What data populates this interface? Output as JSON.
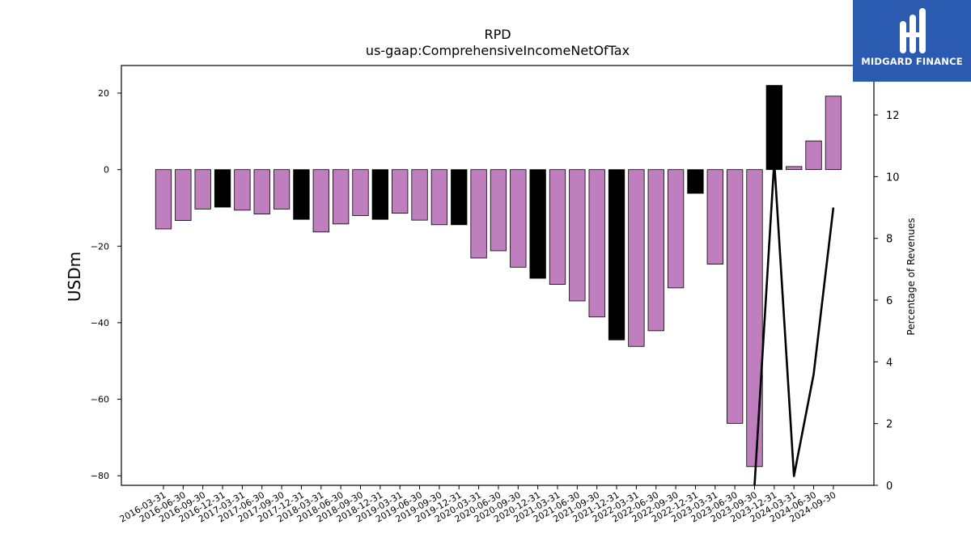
{
  "chart_data": {
    "type": "bar",
    "title": "RPD",
    "subtitle": "us-gaap:ComprehensiveIncomeNetOfTax",
    "ylabel": "USDm",
    "y2label": "Percentage of Revenues",
    "ylim": [
      -82.5,
      27.2
    ],
    "y2lim": [
      0,
      13.6
    ],
    "yticks": [
      20,
      0,
      -20,
      -40,
      -60,
      -80
    ],
    "y2ticks": [
      0,
      2,
      4,
      6,
      8,
      10,
      12
    ],
    "grid": false,
    "categories": [
      "2016-03-31",
      "2016-06-30",
      "2016-09-30",
      "2016-12-31",
      "2017-03-31",
      "2017-06-30",
      "2017-09-30",
      "2017-12-31",
      "2018-03-31",
      "2018-06-30",
      "2018-09-30",
      "2018-12-31",
      "2019-03-31",
      "2019-06-30",
      "2019-09-30",
      "2019-12-31",
      "2020-03-31",
      "2020-06-30",
      "2020-09-30",
      "2020-12-31",
      "2021-03-31",
      "2021-06-30",
      "2021-09-30",
      "2021-12-31",
      "2022-03-31",
      "2022-06-30",
      "2022-09-30",
      "2022-12-31",
      "2023-03-31",
      "2023-06-30",
      "2023-09-30",
      "2023-12-31",
      "2024-03-31",
      "2024-06-30",
      "2024-09-30"
    ],
    "values": [
      -15.5,
      -13.3,
      -10.3,
      -9.8,
      -10.6,
      -11.6,
      -10.3,
      -13.0,
      -16.3,
      -14.2,
      -12.0,
      -13.0,
      -11.4,
      -13.2,
      -14.4,
      -14.4,
      -23.1,
      -21.2,
      -25.5,
      -28.4,
      -30.0,
      -34.3,
      -38.5,
      -44.5,
      -46.2,
      -42.1,
      -30.9,
      -6.2,
      -24.7,
      -66.3,
      -77.6,
      22.0,
      0.8,
      7.5,
      19.2
    ],
    "bar_colors": [
      "#bf7fbf",
      "#bf7fbf",
      "#bf7fbf",
      "#000000",
      "#bf7fbf",
      "#bf7fbf",
      "#bf7fbf",
      "#000000",
      "#bf7fbf",
      "#bf7fbf",
      "#bf7fbf",
      "#000000",
      "#bf7fbf",
      "#bf7fbf",
      "#bf7fbf",
      "#000000",
      "#bf7fbf",
      "#bf7fbf",
      "#bf7fbf",
      "#000000",
      "#bf7fbf",
      "#bf7fbf",
      "#bf7fbf",
      "#000000",
      "#bf7fbf",
      "#bf7fbf",
      "#bf7fbf",
      "#000000",
      "#bf7fbf",
      "#bf7fbf",
      "#bf7fbf",
      "#000000",
      "#bf7fbf",
      "#bf7fbf",
      "#bf7fbf"
    ],
    "line_series": {
      "x": [
        "2023-09-30",
        "2023-12-31",
        "2024-03-31",
        "2024-06-30",
        "2024-09-30"
      ],
      "values": [
        -1.0,
        10.5,
        0.3,
        3.6,
        9.0
      ],
      "color": "#000000"
    }
  },
  "logo": {
    "text": "MIDGARD FINANCE"
  },
  "colors": {
    "logo_bg": "#2b5bb0",
    "bar": "#bf7fbf",
    "bar_alt": "#000000"
  }
}
